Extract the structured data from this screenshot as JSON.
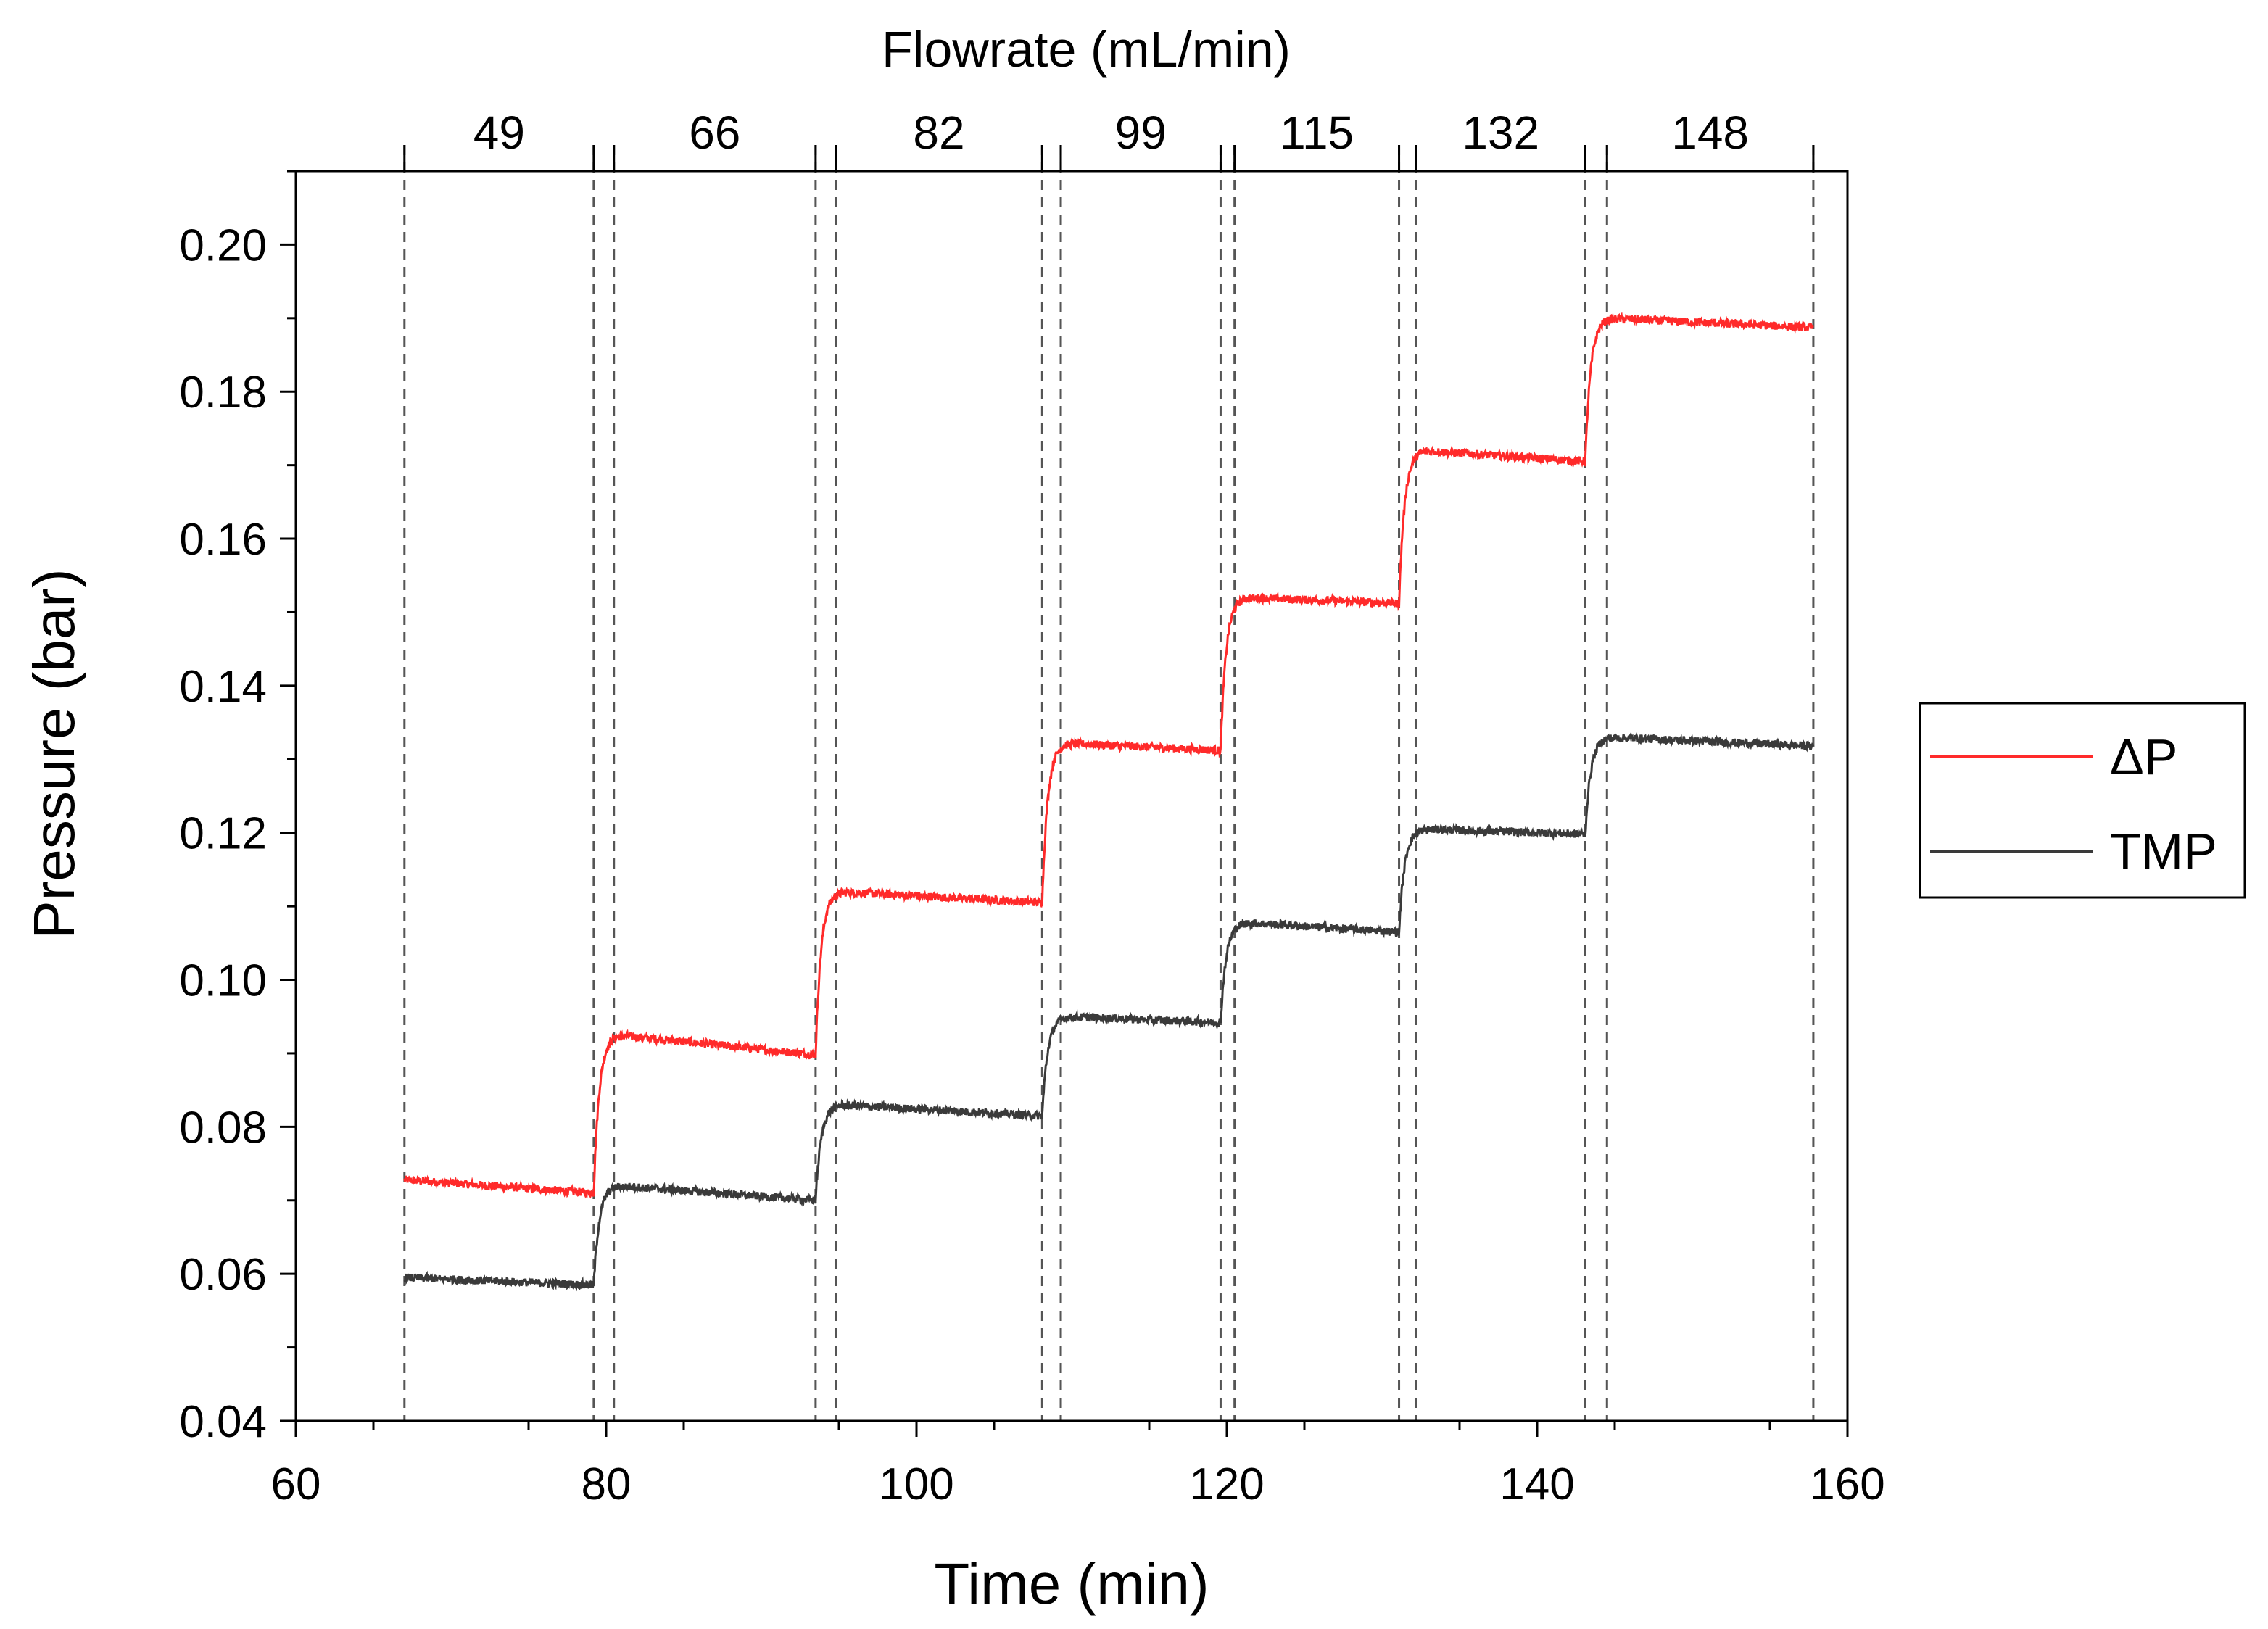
{
  "chart_data": {
    "type": "line",
    "xlabel": "Time (min)",
    "ylabel": "Pressure (bar)",
    "top_axis_title": "Flowrate (mL/min)",
    "xlim": [
      60,
      160
    ],
    "ylim": [
      0.04,
      0.21
    ],
    "x_ticks": [
      60,
      80,
      100,
      120,
      140,
      160
    ],
    "x_tick_labels": [
      "60",
      "80",
      "100",
      "120",
      "140",
      "160"
    ],
    "y_ticks": [
      0.04,
      0.06,
      0.08,
      0.1,
      0.12,
      0.14,
      0.16,
      0.18,
      0.2
    ],
    "y_tick_labels": [
      "0.04",
      "0.06",
      "0.08",
      "0.10",
      "0.12",
      "0.14",
      "0.16",
      "0.18",
      "0.20"
    ],
    "grid": false,
    "legend_position": "right-middle",
    "flowrate_segments": [
      {
        "label": "49",
        "start": 67.0,
        "end": 79.2
      },
      {
        "label": "66",
        "start": 80.5,
        "end": 93.5
      },
      {
        "label": "82",
        "start": 94.8,
        "end": 108.1
      },
      {
        "label": "99",
        "start": 109.3,
        "end": 119.6
      },
      {
        "label": "115",
        "start": 120.5,
        "end": 131.1
      },
      {
        "label": "132",
        "start": 132.2,
        "end": 143.1
      },
      {
        "label": "148",
        "start": 144.5,
        "end": 157.8
      }
    ],
    "vertical_dashed_lines": [
      67.0,
      79.2,
      80.5,
      93.5,
      94.8,
      108.1,
      109.3,
      119.6,
      120.5,
      131.1,
      132.2,
      143.1,
      144.5,
      157.8
    ],
    "series": [
      {
        "name": "ΔP",
        "color": "#ff2a2a",
        "steps": [
          {
            "t0": 67.0,
            "t1": 79.2,
            "peak": 0.0728,
            "end": 0.071
          },
          {
            "t0": 79.2,
            "t1": 93.5,
            "peak": 0.0925,
            "end": 0.0898
          },
          {
            "t0": 93.5,
            "t1": 108.1,
            "peak": 0.112,
            "end": 0.1105
          },
          {
            "t0": 108.1,
            "t1": 119.6,
            "peak": 0.1322,
            "end": 0.1312
          },
          {
            "t0": 119.6,
            "t1": 131.1,
            "peak": 0.152,
            "end": 0.1512
          },
          {
            "t0": 131.1,
            "t1": 143.1,
            "peak": 0.172,
            "end": 0.1705
          },
          {
            "t0": 143.1,
            "t1": 157.8,
            "peak": 0.19,
            "end": 0.1887
          }
        ]
      },
      {
        "name": "TMP",
        "color": "#3a3a3a",
        "steps": [
          {
            "t0": 67.0,
            "t1": 79.2,
            "peak": 0.0595,
            "end": 0.0585
          },
          {
            "t0": 79.2,
            "t1": 93.5,
            "peak": 0.072,
            "end": 0.07
          },
          {
            "t0": 93.5,
            "t1": 108.1,
            "peak": 0.083,
            "end": 0.0815
          },
          {
            "t0": 108.1,
            "t1": 119.6,
            "peak": 0.095,
            "end": 0.0942
          },
          {
            "t0": 119.6,
            "t1": 131.1,
            "peak": 0.1078,
            "end": 0.1065
          },
          {
            "t0": 131.1,
            "t1": 143.1,
            "peak": 0.1205,
            "end": 0.1198
          },
          {
            "t0": 143.1,
            "t1": 157.8,
            "peak": 0.133,
            "end": 0.1318
          }
        ]
      }
    ]
  }
}
